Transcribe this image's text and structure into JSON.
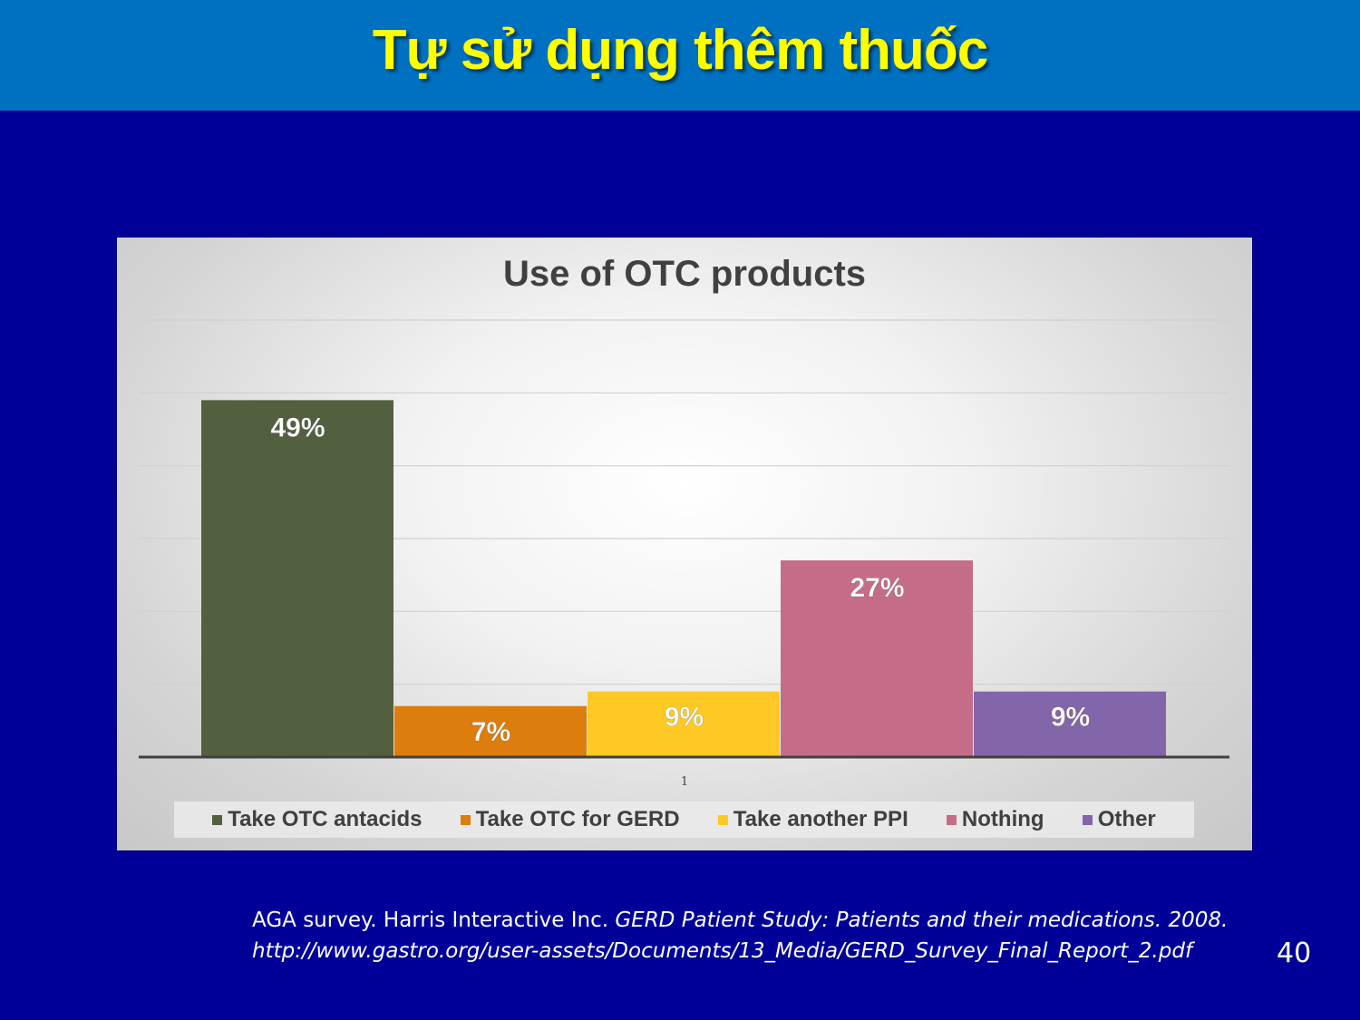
{
  "slide": {
    "title": "Tự sử dụng thêm thuốc",
    "page_number": "40"
  },
  "source": {
    "line1_plain": "AGA survey. Harris Interactive Inc. ",
    "line1_italic": "GERD Patient Study: Patients and their medications. 2008.",
    "line2_italic": "http://www.gastro.org/user-assets/Documents/13_Media/GERD_Survey_Final_Report_2.pdf"
  },
  "colors": {
    "header_bg": "#0070C0",
    "slide_bg": "#000099",
    "title_text": "#FFFF00"
  },
  "chart_data": {
    "type": "bar",
    "title": "Use of OTC products",
    "categories": [
      "1"
    ],
    "series": [
      {
        "name": "Take OTC antacids",
        "values": [
          49
        ],
        "label": "49%",
        "color": "#536040"
      },
      {
        "name": "Take OTC for GERD",
        "values": [
          7
        ],
        "label": "7%",
        "color": "#DD7D0E"
      },
      {
        "name": "Take another PPI",
        "values": [
          9
        ],
        "label": "9%",
        "color": "#FFC925"
      },
      {
        "name": "Nothing",
        "values": [
          27
        ],
        "label": "27%",
        "color": "#C56D86"
      },
      {
        "name": "Other",
        "values": [
          9
        ],
        "label": "9%",
        "color": "#8366AA"
      }
    ],
    "ylim": [
      0,
      60
    ],
    "ytick_step": 10,
    "grid": true,
    "legend_position": "bottom",
    "xlabel": "",
    "ylabel": ""
  }
}
